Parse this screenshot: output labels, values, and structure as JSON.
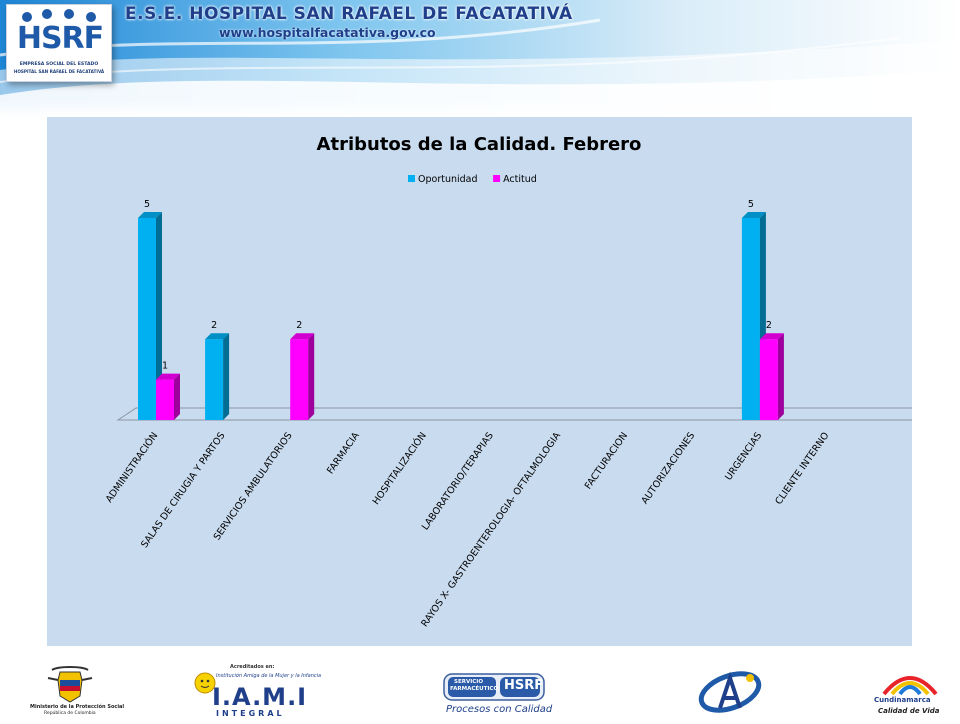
{
  "header": {
    "logo_text": "HSRF",
    "logo_sub1": "EMPRESA SOCIAL DEL ESTADO",
    "logo_sub2": "HOSPITAL SAN RAFAEL DE FACATATIVÁ",
    "title": "E.S.E. HOSPITAL SAN RAFAEL DE FACATATIVÁ",
    "url": "www.hospitalfacatativa.gov.co"
  },
  "chart_data": {
    "type": "bar",
    "title": "Atributos de la Calidad. Febrero",
    "categories": [
      "ADMINISTRACIÓN",
      "SALAS DE CIRUGIA Y PARTOS",
      "SERVICIOS AMBULATORIOS",
      "FARMACIA",
      "HOSPITALIZACIÓN",
      "LABORATORIO/TERAPIAS",
      "RAYOS X- GASTROENTEROLOGIA- OFTALMOLOGIA",
      "FACTURACION",
      "AUTORIZACIONES",
      "URGENCIAS",
      "CLIENTE INTERNO"
    ],
    "series": [
      {
        "name": "Oportunidad",
        "color": "#00b0f0",
        "values": [
          5,
          2,
          0,
          0,
          0,
          0,
          0,
          0,
          0,
          5,
          0
        ],
        "labels": [
          "5",
          "2",
          "",
          "",
          "",
          "",
          "",
          "",
          "",
          "5",
          ""
        ]
      },
      {
        "name": "Actitud",
        "color": "#ff00ff",
        "values": [
          1,
          0,
          2,
          0,
          0,
          0,
          0,
          0,
          0,
          2,
          0
        ],
        "labels": [
          "1",
          "",
          "2",
          "",
          "",
          "",
          "",
          "",
          "",
          "2",
          ""
        ]
      }
    ],
    "ylim": [
      0,
      5
    ],
    "legend": "top-center",
    "grid": false,
    "style": "3d-columns"
  },
  "footer": {
    "ministerio_line1": "Ministerio de la Protección Social",
    "ministerio_line2": "República de Colombia",
    "iami_small1": "Acreditados en:",
    "iami_small2": "Institución Amiga de la Mujer y la Infancia",
    "iami_big": "I.A.M.I",
    "iami_integral": "INTEGRAL",
    "farm_label1": "SERVICIO",
    "farm_label2": "FARMACÉUTICO",
    "farm_brand": "HSRF",
    "farm_slogan": "Procesos con Calidad",
    "cundinamarca_name": "Cundinamarca",
    "cundinamarca_slogan": "Calidad de Vida"
  }
}
